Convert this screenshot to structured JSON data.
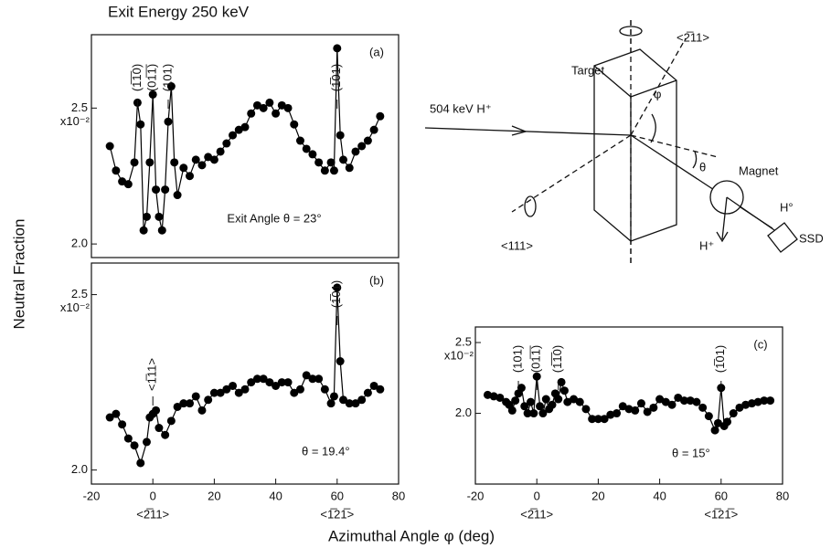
{
  "figure": {
    "xlabel": "Azimuthal Angle φ (deg)",
    "ylabel": "Neutral Fraction"
  },
  "diagram": {
    "labels": [
      "Target",
      "<2̅11>",
      "504 keV H⁺",
      "φ",
      "θ",
      "Magnet",
      "H°",
      "<111>",
      "H⁺",
      "SSD"
    ]
  },
  "chart_data": [
    {
      "type": "line",
      "title": "Exit Energy 250 keV",
      "panel": "(a)",
      "color": "#000000",
      "x": [
        -14,
        -12,
        -10,
        -8,
        -6,
        -5,
        -4,
        -3,
        -2,
        -1,
        0,
        1,
        2,
        3,
        4,
        5,
        6,
        7,
        8,
        10,
        12,
        14,
        16,
        18,
        20,
        22,
        24,
        26,
        28,
        30,
        32,
        34,
        36,
        38,
        40,
        42,
        44,
        46,
        48,
        50,
        52,
        54,
        56,
        58,
        59,
        60,
        61,
        62,
        64,
        66,
        68,
        70,
        72,
        74
      ],
      "values": [
        2.36,
        2.27,
        2.23,
        2.22,
        2.3,
        2.52,
        2.44,
        2.05,
        2.1,
        2.3,
        2.55,
        2.2,
        2.1,
        2.05,
        2.2,
        2.45,
        2.58,
        2.3,
        2.18,
        2.28,
        2.25,
        2.31,
        2.29,
        2.32,
        2.31,
        2.34,
        2.37,
        2.4,
        2.42,
        2.43,
        2.48,
        2.51,
        2.5,
        2.52,
        2.48,
        2.51,
        2.5,
        2.44,
        2.38,
        2.35,
        2.33,
        2.3,
        2.27,
        2.3,
        2.27,
        2.72,
        2.4,
        2.31,
        2.28,
        2.34,
        2.36,
        2.38,
        2.42,
        2.47
      ],
      "xlim": [
        -20,
        80
      ],
      "ylim": [
        1.95,
        2.77
      ],
      "yticks": [
        {
          "value": 2,
          "label": "2.0"
        },
        2.5
      ],
      "y_multiplier": "x10⁻²",
      "condition": "Exit Angle  θ = 23°",
      "annotations": [
        "(1̅1̅0)",
        "(01̅1̅)",
        "(101)",
        "(1̅01)"
      ]
    },
    {
      "type": "line",
      "panel": "(b)",
      "color": "#000000",
      "x": [
        -14,
        -12,
        -10,
        -8,
        -6,
        -4,
        -2,
        -1,
        0,
        1,
        2,
        4,
        6,
        8,
        10,
        12,
        14,
        16,
        18,
        20,
        22,
        24,
        26,
        28,
        30,
        32,
        34,
        36,
        38,
        40,
        42,
        44,
        46,
        48,
        50,
        52,
        54,
        56,
        58,
        59,
        60,
        61,
        62,
        64,
        66,
        68,
        70,
        72,
        74
      ],
      "values": [
        2.15,
        2.16,
        2.13,
        2.09,
        2.07,
        2.02,
        2.08,
        2.15,
        2.16,
        2.17,
        2.12,
        2.1,
        2.14,
        2.18,
        2.19,
        2.19,
        2.21,
        2.17,
        2.2,
        2.22,
        2.22,
        2.23,
        2.24,
        2.22,
        2.23,
        2.25,
        2.26,
        2.26,
        2.25,
        2.24,
        2.25,
        2.25,
        2.22,
        2.23,
        2.27,
        2.26,
        2.26,
        2.23,
        2.19,
        2.21,
        2.52,
        2.31,
        2.2,
        2.19,
        2.19,
        2.2,
        2.22,
        2.24,
        2.23
      ],
      "xlim": [
        -20,
        80
      ],
      "xticks": [
        -20,
        0,
        20,
        40,
        60,
        80
      ],
      "x_sublabels": [
        "<2̅11>",
        "<1̅21̅>"
      ],
      "ylim": [
        1.96,
        2.59
      ],
      "yticks": [
        {
          "value": 2,
          "label": "2.0"
        },
        2.5
      ],
      "y_multiplier": "x10⁻²",
      "condition": "θ = 19.4°",
      "annotations": [
        "<1̅11>",
        "(1̅01)"
      ]
    },
    {
      "type": "line",
      "panel": "(c)",
      "color": "#000000",
      "x": [
        -16,
        -14,
        -12,
        -10,
        -9,
        -8,
        -7,
        -6,
        -5,
        -4,
        -3,
        -2,
        -1,
        0,
        1,
        2,
        3,
        4,
        5,
        6,
        7,
        8,
        9,
        10,
        12,
        14,
        16,
        18,
        20,
        22,
        24,
        26,
        28,
        30,
        32,
        34,
        36,
        38,
        40,
        42,
        44,
        46,
        48,
        50,
        52,
        54,
        56,
        58,
        59,
        60,
        61,
        62,
        64,
        66,
        68,
        70,
        72,
        74,
        76
      ],
      "values": [
        2.13,
        2.12,
        2.11,
        2.08,
        2.06,
        2.02,
        2.09,
        2.14,
        2.18,
        2.05,
        2.0,
        2.08,
        2.0,
        2.26,
        2.05,
        2.0,
        2.1,
        2.03,
        2.06,
        2.14,
        2.1,
        2.22,
        2.16,
        2.08,
        2.1,
        2.08,
        2.03,
        1.96,
        1.96,
        1.96,
        1.99,
        2.0,
        2.05,
        2.03,
        2.02,
        2.07,
        2.01,
        2.04,
        2.1,
        2.08,
        2.06,
        2.11,
        2.09,
        2.09,
        2.08,
        2.04,
        1.98,
        1.88,
        1.93,
        2.18,
        1.91,
        1.94,
        2.0,
        2.04,
        2.06,
        2.07,
        2.08,
        2.09,
        2.09
      ],
      "xlim": [
        -20,
        80
      ],
      "xticks": [
        -20,
        0,
        20,
        40,
        60,
        80
      ],
      "x_sublabels": [
        "<2̅11>",
        "<1̅21̅>"
      ],
      "ylim": [
        1.5,
        2.61
      ],
      "yticks": [
        {
          "value": 2,
          "label": "2.0"
        },
        2.5
      ],
      "y_multiplier": "x10⁻²",
      "condition": "θ = 15°",
      "annotations": [
        "(101)",
        "(01̅1̅)",
        "(1̅1̅0)",
        "(1̅01)"
      ]
    }
  ]
}
